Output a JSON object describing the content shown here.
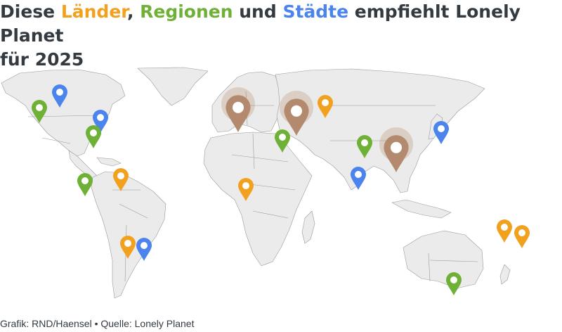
{
  "title": {
    "part1": "Diese ",
    "laender": "Länder",
    "comma": ", ",
    "regionen": "Regionen",
    "und": " und ",
    "staedte": "Städte",
    "rest": " empfiehlt Lonely Planet",
    "line2": "für 2025"
  },
  "colors": {
    "country": "#f2a11f",
    "region": "#6fb036",
    "city": "#4b84ec",
    "highlight": "#b48a6e",
    "land": "#ebebeb",
    "border": "#9a9a9a",
    "text": "#333a40"
  },
  "markers": [
    {
      "category": "city",
      "icon": "map-pin-icon"
    },
    {
      "category": "region",
      "icon": "map-pin-icon"
    },
    {
      "category": "city",
      "icon": "map-pin-icon"
    },
    {
      "category": "region",
      "icon": "map-pin-icon"
    },
    {
      "category": "region",
      "icon": "map-pin-icon"
    },
    {
      "category": "country",
      "icon": "map-pin-icon"
    },
    {
      "category": "country",
      "icon": "map-pin-icon"
    },
    {
      "category": "city",
      "icon": "map-pin-icon"
    },
    {
      "category": "highlight",
      "icon": "map-pin-icon"
    },
    {
      "category": "highlight",
      "icon": "map-pin-icon"
    },
    {
      "category": "country",
      "icon": "map-pin-icon"
    },
    {
      "category": "region",
      "icon": "map-pin-icon"
    },
    {
      "category": "country",
      "icon": "map-pin-icon"
    },
    {
      "category": "region",
      "icon": "map-pin-icon"
    },
    {
      "category": "city",
      "icon": "map-pin-icon"
    },
    {
      "category": "highlight",
      "icon": "map-pin-icon"
    },
    {
      "category": "city",
      "icon": "map-pin-icon"
    },
    {
      "category": "country",
      "icon": "map-pin-icon"
    },
    {
      "category": "country",
      "icon": "map-pin-icon"
    },
    {
      "category": "region",
      "icon": "map-pin-icon"
    }
  ],
  "source": "Grafik: RND/Haensel • Quelle: Lonely Planet"
}
